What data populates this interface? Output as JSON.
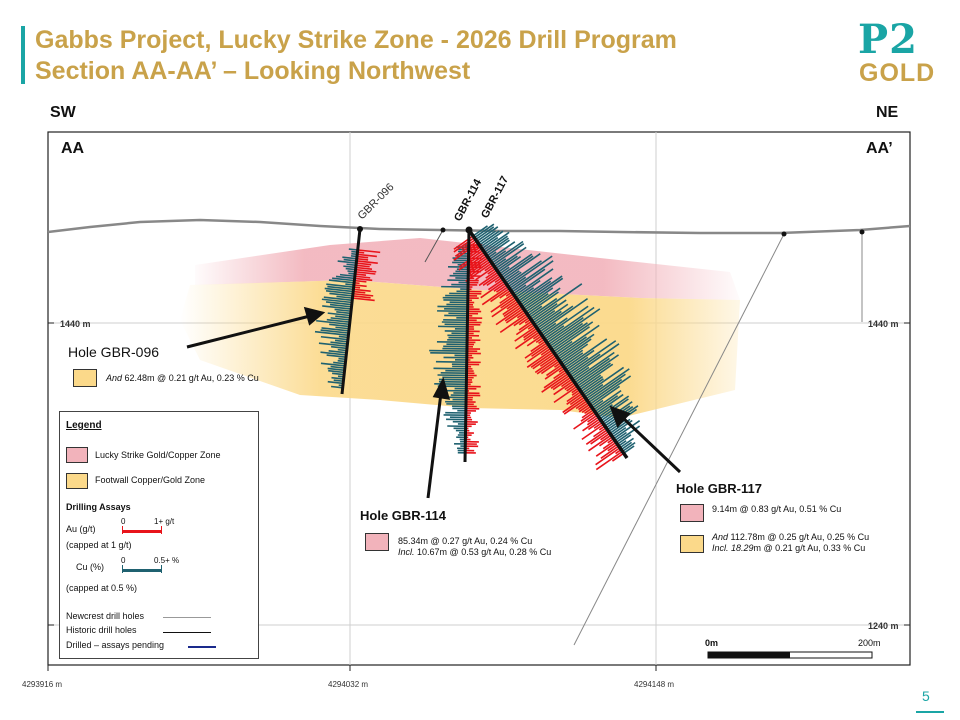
{
  "header": {
    "title_line1": "Gabbs Project, Lucky Strike Zone - 2026 Drill Program",
    "title_line2": "Section AA-AA’ – Looking Northwest",
    "logo_top": "P2",
    "logo_bottom": "GOLD"
  },
  "section": {
    "dir_left": "SW",
    "dir_right": "NE",
    "label_left": "AA",
    "label_right": "AA’",
    "elev_1440": "1440 m",
    "elev_1240": "1240 m",
    "easting_1": "4293916 m",
    "easting_2": "4294032 m",
    "easting_3": "4294148 m",
    "scale_0": "0m",
    "scale_200": "200m"
  },
  "holes": {
    "gbr096": {
      "collar": "GBR-096",
      "label": "Hole GBR-096",
      "assay1_prefix": "And",
      "assay1": "62.48m @  0.21 g/t Au, 0.23 % Cu"
    },
    "gbr114": {
      "collar": "GBR-114",
      "label": "Hole GBR-114",
      "assay1": "85.34m @  0.27 g/t Au, 0.24 % Cu",
      "assay2_prefix": "Incl.",
      "assay2": "10.67m @  0.53 g/t Au, 0.28 % Cu"
    },
    "gbr117": {
      "collar": "GBR-117",
      "label": "Hole GBR-117",
      "assay1": "9.14m @  0.83 g/t Au, 0.51 % Cu",
      "assay2_prefix": "And",
      "assay2": "112.78m @ 0.25 g/t Au, 0.25 % Cu",
      "assay3_prefix": "Incl. 18.29",
      "assay3": "m @  0.21 g/t Au, 0.33 % Cu"
    }
  },
  "legend": {
    "title": "Legend",
    "zone1": "Lucky Strike Gold/Copper Zone",
    "zone2": "Footwall Copper/Gold Zone",
    "assays_title": "Drilling Assays",
    "au_label": "Au (g/t)",
    "au_min": "0",
    "au_max": "1+ g/t",
    "au_cap": "(capped at 1 g/t)",
    "cu_label": "Cu (%)",
    "cu_min": "0",
    "cu_max": "0.5+ %",
    "cu_cap": "(capped at 0.5 %)",
    "line1": "Newcrest drill holes",
    "line2": "Historic drill holes",
    "line3": "Drilled – assays pending"
  },
  "footer": {
    "page": "5"
  },
  "colors": {
    "accent_teal": "#1aa5a5",
    "accent_gold": "#c9a24a",
    "lucky_strike_zone": "#f2b3bb",
    "footwall_zone": "#fbd98a",
    "au_assay": "#e8141b",
    "cu_assay": "#1f6170",
    "pending": "#1a2a8c"
  }
}
